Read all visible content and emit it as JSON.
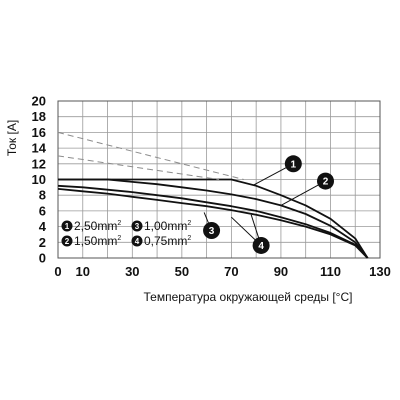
{
  "chart_data": {
    "type": "line",
    "xlabel": "Температура окружающей среды [°C]",
    "ylabel": "Ток [A]",
    "xticks": [
      0,
      10,
      30,
      50,
      70,
      90,
      110,
      130
    ],
    "yticks": [
      0,
      2,
      4,
      6,
      8,
      10,
      12,
      14,
      16,
      18,
      20
    ],
    "xlim": [
      0,
      130
    ],
    "ylim": [
      0,
      20
    ],
    "grid": true,
    "series": [
      {
        "marker": "1",
        "name": "2,50mm²",
        "style": "solid",
        "x": [
          0,
          10,
          20,
          30,
          40,
          50,
          60,
          70,
          80,
          90,
          100,
          110,
          120,
          125
        ],
        "y": [
          10,
          10,
          10,
          10,
          10,
          10,
          10,
          10,
          9.2,
          8,
          6.7,
          5,
          2.5,
          0
        ]
      },
      {
        "marker": "2",
        "name": "1,50mm²",
        "style": "solid",
        "x": [
          0,
          10,
          20,
          30,
          40,
          50,
          60,
          70,
          80,
          90,
          100,
          110,
          120,
          125
        ],
        "y": [
          10,
          10,
          10,
          9.7,
          9.4,
          9,
          8.6,
          8.1,
          7.5,
          6.7,
          5.6,
          4.1,
          2,
          0
        ]
      },
      {
        "marker": "3",
        "name": "1,00mm²",
        "style": "solid",
        "x": [
          0,
          10,
          20,
          30,
          40,
          50,
          60,
          70,
          80,
          90,
          100,
          110,
          120,
          125
        ],
        "y": [
          9.2,
          9,
          8.7,
          8.4,
          8,
          7.6,
          7.1,
          6.6,
          6,
          5.2,
          4.3,
          3.2,
          1.7,
          0
        ]
      },
      {
        "marker": "4",
        "name": "0,75mm²",
        "style": "solid",
        "x": [
          0,
          10,
          20,
          30,
          40,
          50,
          60,
          70,
          80,
          90,
          100,
          110,
          120,
          125
        ],
        "y": [
          8.8,
          8.5,
          8.2,
          7.8,
          7.4,
          7,
          6.6,
          6.1,
          5.5,
          4.8,
          4,
          3,
          1.6,
          0
        ]
      },
      {
        "style": "dashed",
        "x": [
          0,
          75
        ],
        "y": [
          16,
          10
        ]
      },
      {
        "style": "dashed",
        "x": [
          0,
          65
        ],
        "y": [
          13,
          10
        ]
      }
    ],
    "callouts": [
      {
        "marker": "1",
        "target": [
          79,
          9.3
        ],
        "badge": [
          95,
          12
        ]
      },
      {
        "marker": "2",
        "target": [
          90,
          6.7
        ],
        "badge": [
          108,
          9.8
        ]
      },
      {
        "marker": "3",
        "target": [
          59,
          5.8
        ],
        "badge": [
          62,
          3.5
        ]
      },
      {
        "marker": "4",
        "target": [
          70,
          5.2
        ],
        "badge": [
          82,
          1.6
        ]
      },
      {
        "marker": "4",
        "target": [
          78,
          5.5
        ],
        "badge": [
          82,
          1.6
        ]
      }
    ],
    "legend": {
      "placement": "bottom-left",
      "items": [
        {
          "marker": "1",
          "label": "2,50mm",
          "unit_sup": "2"
        },
        {
          "marker": "3",
          "label": "1,00mm",
          "unit_sup": "2"
        },
        {
          "marker": "2",
          "label": "1,50mm",
          "unit_sup": "2"
        },
        {
          "marker": "4",
          "label": "0,75mm",
          "unit_sup": "2"
        }
      ]
    }
  }
}
